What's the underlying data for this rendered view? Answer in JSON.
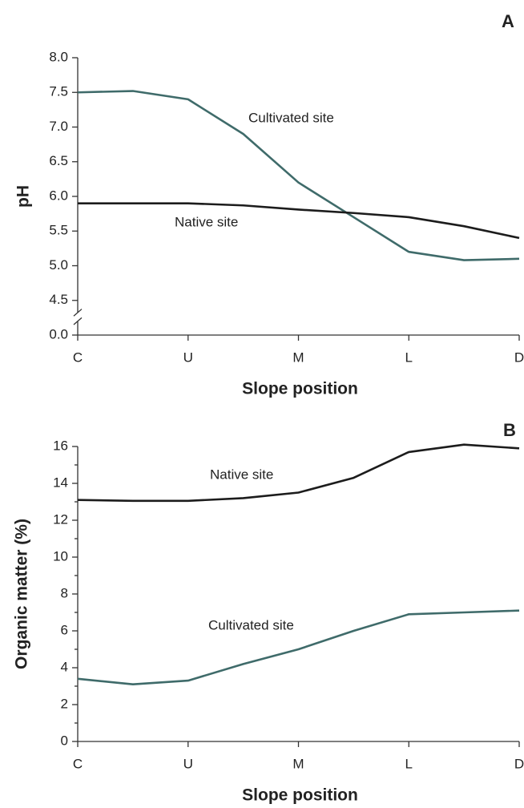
{
  "chart_data": [
    {
      "type": "line",
      "panel": "A",
      "x": [
        0,
        0.5,
        1,
        1.5,
        2,
        2.5,
        3,
        3.5,
        4
      ],
      "xticks": [
        {
          "value": 0,
          "label": "C"
        },
        {
          "value": 1,
          "label": "U"
        },
        {
          "value": 2,
          "label": "M"
        },
        {
          "value": 3,
          "label": "L"
        },
        {
          "value": 4,
          "label": "D"
        }
      ],
      "xlim": [
        0,
        4
      ],
      "xlabel": "Slope position",
      "ylabel": "pH",
      "ylim": [
        0,
        8
      ],
      "axis_break": [
        0,
        4.5
      ],
      "yticks": [
        {
          "value": 0,
          "label": "0.0"
        },
        {
          "value": 4.5,
          "label": "4.5"
        },
        {
          "value": 5,
          "label": "5.0"
        },
        {
          "value": 5.5,
          "label": "5.5"
        },
        {
          "value": 6,
          "label": "6.0"
        },
        {
          "value": 6.5,
          "label": "6.5"
        },
        {
          "value": 7,
          "label": "7.0"
        },
        {
          "value": 7.5,
          "label": "7.5"
        },
        {
          "value": 8,
          "label": "8.0"
        }
      ],
      "series": [
        {
          "name": "Cultivated site",
          "color": "#3f6b6a",
          "values": [
            7.5,
            7.52,
            7.4,
            6.9,
            6.2,
            5.7,
            5.2,
            5.08,
            5.1
          ]
        },
        {
          "name": "Native site",
          "color": "#1c1c1c",
          "values": [
            5.9,
            5.9,
            5.9,
            5.87,
            5.81,
            5.76,
            5.7,
            5.57,
            5.4
          ]
        }
      ]
    },
    {
      "type": "line",
      "panel": "B",
      "x": [
        0,
        0.5,
        1,
        1.5,
        2,
        2.5,
        3,
        3.5,
        4
      ],
      "xticks": [
        {
          "value": 0,
          "label": "C"
        },
        {
          "value": 1,
          "label": "U"
        },
        {
          "value": 2,
          "label": "M"
        },
        {
          "value": 3,
          "label": "L"
        },
        {
          "value": 4,
          "label": "D"
        }
      ],
      "xlim": [
        0,
        4
      ],
      "xlabel": "Slope position",
      "ylabel": "Organic matter (%)",
      "ylim": [
        0,
        16
      ],
      "yticks": [
        0,
        2,
        4,
        6,
        8,
        10,
        12,
        14,
        16
      ],
      "yminorticks": [
        1,
        3,
        5,
        7,
        9,
        11,
        13,
        15
      ],
      "series": [
        {
          "name": "Native site",
          "color": "#1c1c1c",
          "values": [
            13.1,
            13.05,
            13.05,
            13.2,
            13.5,
            14.3,
            15.7,
            16.1,
            15.9
          ]
        },
        {
          "name": "Cultivated site",
          "color": "#3f6b6a",
          "values": [
            3.4,
            3.1,
            3.3,
            4.2,
            5.0,
            6.0,
            6.9,
            7.0,
            7.1
          ]
        }
      ]
    }
  ]
}
